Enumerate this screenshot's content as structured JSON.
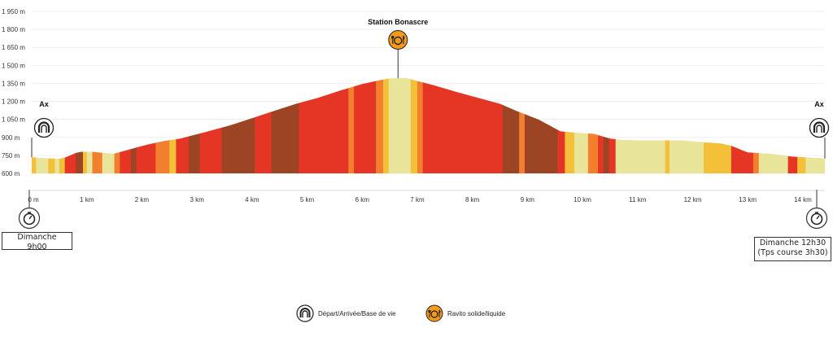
{
  "chart_data": {
    "type": "area",
    "title": "",
    "xlabel": "",
    "ylabel": "",
    "y_unit": "m",
    "x_unit": "km",
    "xlim": [
      0,
      14.4
    ],
    "ylim": [
      600,
      1950
    ],
    "y_ticks": [
      "1 950 m",
      "1 800 m",
      "1 650 m",
      "1 500 m",
      "1 350 m",
      "1 200 m",
      "1 050 m",
      "900 m",
      "750 m",
      "600 m"
    ],
    "y_tick_values": [
      1950,
      1800,
      1650,
      1500,
      1350,
      1200,
      1050,
      900,
      750,
      600
    ],
    "x_ticks": [
      "0 m",
      "1 km",
      "2 km",
      "3 km",
      "4 km",
      "5 km",
      "6 km",
      "7 km",
      "8 km",
      "9 km",
      "10 km",
      "11 km",
      "12 km",
      "13 km",
      "14 km"
    ],
    "x_tick_values": [
      0,
      1,
      2,
      3,
      4,
      5,
      6,
      7,
      8,
      9,
      10,
      11,
      12,
      13,
      14
    ],
    "grid": true,
    "profile": [
      [
        0,
        735
      ],
      [
        0.3,
        725
      ],
      [
        0.5,
        722
      ],
      [
        0.6,
        730
      ],
      [
        0.8,
        770
      ],
      [
        0.9,
        780
      ],
      [
        1.1,
        780
      ],
      [
        1.3,
        770
      ],
      [
        1.5,
        765
      ],
      [
        1.7,
        790
      ],
      [
        1.9,
        815
      ],
      [
        2.1,
        840
      ],
      [
        2.4,
        870
      ],
      [
        2.7,
        890
      ],
      [
        2.9,
        915
      ],
      [
        3.2,
        950
      ],
      [
        3.6,
        1000
      ],
      [
        4.0,
        1060
      ],
      [
        4.4,
        1120
      ],
      [
        4.8,
        1180
      ],
      [
        5.2,
        1230
      ],
      [
        5.6,
        1290
      ],
      [
        6.0,
        1345
      ],
      [
        6.3,
        1375
      ],
      [
        6.5,
        1392
      ],
      [
        6.8,
        1395
      ],
      [
        7.0,
        1370
      ],
      [
        7.3,
        1335
      ],
      [
        7.7,
        1280
      ],
      [
        8.1,
        1230
      ],
      [
        8.5,
        1180
      ],
      [
        8.8,
        1120
      ],
      [
        9.2,
        1050
      ],
      [
        9.6,
        950
      ],
      [
        9.85,
        940
      ],
      [
        10.2,
        930
      ],
      [
        10.5,
        890
      ],
      [
        10.7,
        880
      ],
      [
        11.0,
        875
      ],
      [
        11.5,
        875
      ],
      [
        11.8,
        875
      ],
      [
        12.2,
        860
      ],
      [
        12.5,
        850
      ],
      [
        12.7,
        830
      ],
      [
        13.0,
        775
      ],
      [
        13.4,
        765
      ],
      [
        13.8,
        740
      ],
      [
        14.4,
        725
      ]
    ],
    "segments": [
      {
        "x0": 0,
        "x1": 0.08,
        "color": "#f4c038"
      },
      {
        "x0": 0.08,
        "x1": 0.3,
        "color": "#e8e49a"
      },
      {
        "x0": 0.3,
        "x1": 0.42,
        "color": "#f4c038"
      },
      {
        "x0": 0.42,
        "x1": 0.5,
        "color": "#e8e49a"
      },
      {
        "x0": 0.5,
        "x1": 0.6,
        "color": "#f4c038"
      },
      {
        "x0": 0.6,
        "x1": 0.8,
        "color": "#e53524"
      },
      {
        "x0": 0.8,
        "x1": 0.93,
        "color": "#9c4424"
      },
      {
        "x0": 0.93,
        "x1": 1.0,
        "color": "#f4c038"
      },
      {
        "x0": 1.0,
        "x1": 1.1,
        "color": "#e8e49a"
      },
      {
        "x0": 1.1,
        "x1": 1.28,
        "color": "#f27f2e"
      },
      {
        "x0": 1.28,
        "x1": 1.5,
        "color": "#e8e49a"
      },
      {
        "x0": 1.5,
        "x1": 1.6,
        "color": "#f27f2e"
      },
      {
        "x0": 1.6,
        "x1": 1.8,
        "color": "#e53524"
      },
      {
        "x0": 1.8,
        "x1": 1.9,
        "color": "#9c4424"
      },
      {
        "x0": 1.9,
        "x1": 2.25,
        "color": "#e53524"
      },
      {
        "x0": 2.25,
        "x1": 2.5,
        "color": "#f27f2e"
      },
      {
        "x0": 2.5,
        "x1": 2.62,
        "color": "#f4c038"
      },
      {
        "x0": 2.62,
        "x1": 2.85,
        "color": "#e53524"
      },
      {
        "x0": 2.85,
        "x1": 3.05,
        "color": "#9c4424"
      },
      {
        "x0": 3.05,
        "x1": 3.45,
        "color": "#e53524"
      },
      {
        "x0": 3.45,
        "x1": 4.05,
        "color": "#9c4424"
      },
      {
        "x0": 4.05,
        "x1": 4.35,
        "color": "#e53524"
      },
      {
        "x0": 4.35,
        "x1": 4.85,
        "color": "#9c4424"
      },
      {
        "x0": 4.85,
        "x1": 5.75,
        "color": "#e53524"
      },
      {
        "x0": 5.75,
        "x1": 5.85,
        "color": "#f27f2e"
      },
      {
        "x0": 5.85,
        "x1": 6.25,
        "color": "#e53524"
      },
      {
        "x0": 6.25,
        "x1": 6.38,
        "color": "#f27f2e"
      },
      {
        "x0": 6.38,
        "x1": 6.48,
        "color": "#f4c038"
      },
      {
        "x0": 6.48,
        "x1": 6.88,
        "color": "#e8e49a"
      },
      {
        "x0": 6.88,
        "x1": 7.0,
        "color": "#f4c038"
      },
      {
        "x0": 7.0,
        "x1": 7.1,
        "color": "#f27f2e"
      },
      {
        "x0": 7.1,
        "x1": 8.55,
        "color": "#e53524"
      },
      {
        "x0": 8.55,
        "x1": 8.85,
        "color": "#9c4424"
      },
      {
        "x0": 8.85,
        "x1": 8.95,
        "color": "#f27f2e"
      },
      {
        "x0": 8.95,
        "x1": 9.55,
        "color": "#9c4424"
      },
      {
        "x0": 9.55,
        "x1": 9.68,
        "color": "#e53524"
      },
      {
        "x0": 9.68,
        "x1": 9.85,
        "color": "#f4c038"
      },
      {
        "x0": 9.85,
        "x1": 10.1,
        "color": "#e8e49a"
      },
      {
        "x0": 10.1,
        "x1": 10.28,
        "color": "#f27f2e"
      },
      {
        "x0": 10.28,
        "x1": 10.38,
        "color": "#e53524"
      },
      {
        "x0": 10.38,
        "x1": 10.48,
        "color": "#9c4424"
      },
      {
        "x0": 10.48,
        "x1": 10.6,
        "color": "#e53524"
      },
      {
        "x0": 10.6,
        "x1": 11.5,
        "color": "#e8e49a"
      },
      {
        "x0": 11.5,
        "x1": 11.58,
        "color": "#f4c038"
      },
      {
        "x0": 11.58,
        "x1": 12.2,
        "color": "#e8e49a"
      },
      {
        "x0": 12.2,
        "x1": 12.7,
        "color": "#f4c038"
      },
      {
        "x0": 12.7,
        "x1": 13.1,
        "color": "#e53524"
      },
      {
        "x0": 13.1,
        "x1": 13.2,
        "color": "#f27f2e"
      },
      {
        "x0": 13.2,
        "x1": 13.73,
        "color": "#e8e49a"
      },
      {
        "x0": 13.73,
        "x1": 13.9,
        "color": "#e53524"
      },
      {
        "x0": 13.9,
        "x1": 14.05,
        "color": "#f4c038"
      },
      {
        "x0": 14.05,
        "x1": 14.4,
        "color": "#e8e49a"
      }
    ],
    "waypoints": [
      {
        "label": "Ax",
        "km": 0,
        "type": "base"
      },
      {
        "label": "Station Bonascre",
        "km": 6.65,
        "type": "ravito"
      },
      {
        "label": "Ax",
        "km": 14.4,
        "type": "base"
      }
    ]
  },
  "start_time": {
    "line1": "Dimanche",
    "line2": "9h00"
  },
  "end_time": {
    "line1": "Dimanche 12h30",
    "line2": "(Tps course 3h30)"
  },
  "legend": {
    "base_label": "Départ/Arrivée/Base de vie",
    "ravito_label": "Ravito solide/liquide"
  },
  "colors": {
    "base_icon": "#222222",
    "ravito_icon": "#f39a1b",
    "grid": "#e6e6e6"
  }
}
